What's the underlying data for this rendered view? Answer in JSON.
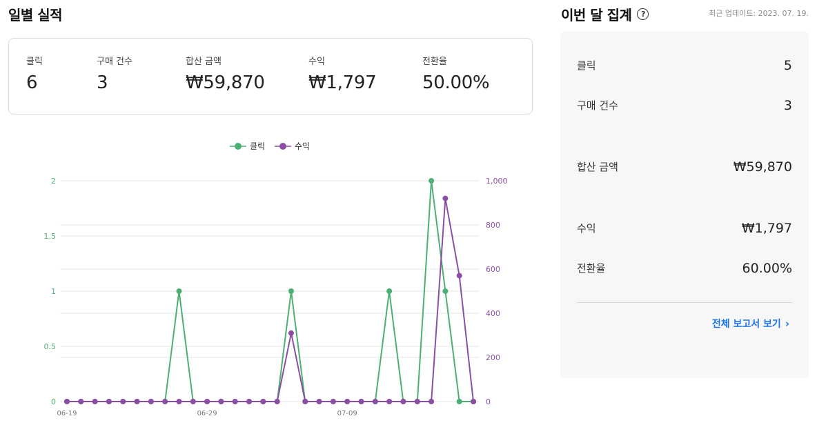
{
  "daily": {
    "title": "일별 실적",
    "metrics": [
      {
        "label": "클릭",
        "value": "6"
      },
      {
        "label": "구매 건수",
        "value": "3"
      },
      {
        "label": "합산 금액",
        "value": "₩59,870"
      },
      {
        "label": "수익",
        "value": "₩1,797"
      },
      {
        "label": "전환율",
        "value": "50.00%"
      }
    ]
  },
  "monthly": {
    "title": "이번 달 집계",
    "help_icon": "question-circle-icon",
    "updated": "최근 업데이트: 2023. 07. 19.",
    "rows": [
      {
        "label": "클릭",
        "value": "5"
      },
      {
        "label": "구매 건수",
        "value": "3"
      },
      {
        "label": "합산 금액",
        "value": "₩59,870"
      },
      {
        "label": "수익",
        "value": "₩1,797"
      },
      {
        "label": "전환율",
        "value": "60.00%"
      }
    ],
    "report_link": "전체 보고서 보기",
    "report_icon": "chevron-right-icon",
    "link_color": "#1a73e8"
  },
  "chart_data": {
    "type": "line",
    "x": [
      "06-19",
      "06-20",
      "06-21",
      "06-22",
      "06-23",
      "06-24",
      "06-25",
      "06-26",
      "06-27",
      "06-28",
      "06-29",
      "06-30",
      "07-01",
      "07-02",
      "07-03",
      "07-04",
      "07-05",
      "07-06",
      "07-07",
      "07-08",
      "07-09",
      "07-10",
      "07-11",
      "07-12",
      "07-13",
      "07-14",
      "07-15",
      "07-16",
      "07-17",
      "07-18"
    ],
    "x_tick_labels": [
      "06-19",
      "06-29",
      "07-09"
    ],
    "series": [
      {
        "name": "클릭",
        "axis": "left",
        "color": "#4caf73",
        "values": [
          0,
          0,
          0,
          0,
          0,
          0,
          0,
          0,
          1,
          0,
          0,
          0,
          0,
          0,
          0,
          0,
          1,
          0,
          0,
          0,
          0,
          0,
          0,
          1,
          0,
          0,
          2,
          1,
          0,
          0
        ]
      },
      {
        "name": "수익",
        "axis": "right",
        "color": "#8a4fa3",
        "values": [
          0,
          0,
          0,
          0,
          0,
          0,
          0,
          0,
          0,
          0,
          0,
          0,
          0,
          0,
          0,
          0,
          310,
          0,
          0,
          0,
          0,
          0,
          0,
          0,
          0,
          0,
          0,
          920,
          570,
          0
        ]
      }
    ],
    "y_left": {
      "ticks": [
        "0",
        "0.5",
        "1",
        "1.5",
        "2"
      ],
      "ylim": [
        0,
        2
      ],
      "color": "#4caf73"
    },
    "y_right": {
      "ticks": [
        "0",
        "200",
        "400",
        "600",
        "800",
        "1,000"
      ],
      "ylim": [
        0,
        1000
      ],
      "color": "#8a4fa3"
    },
    "grid": true,
    "legend": "top-center"
  }
}
